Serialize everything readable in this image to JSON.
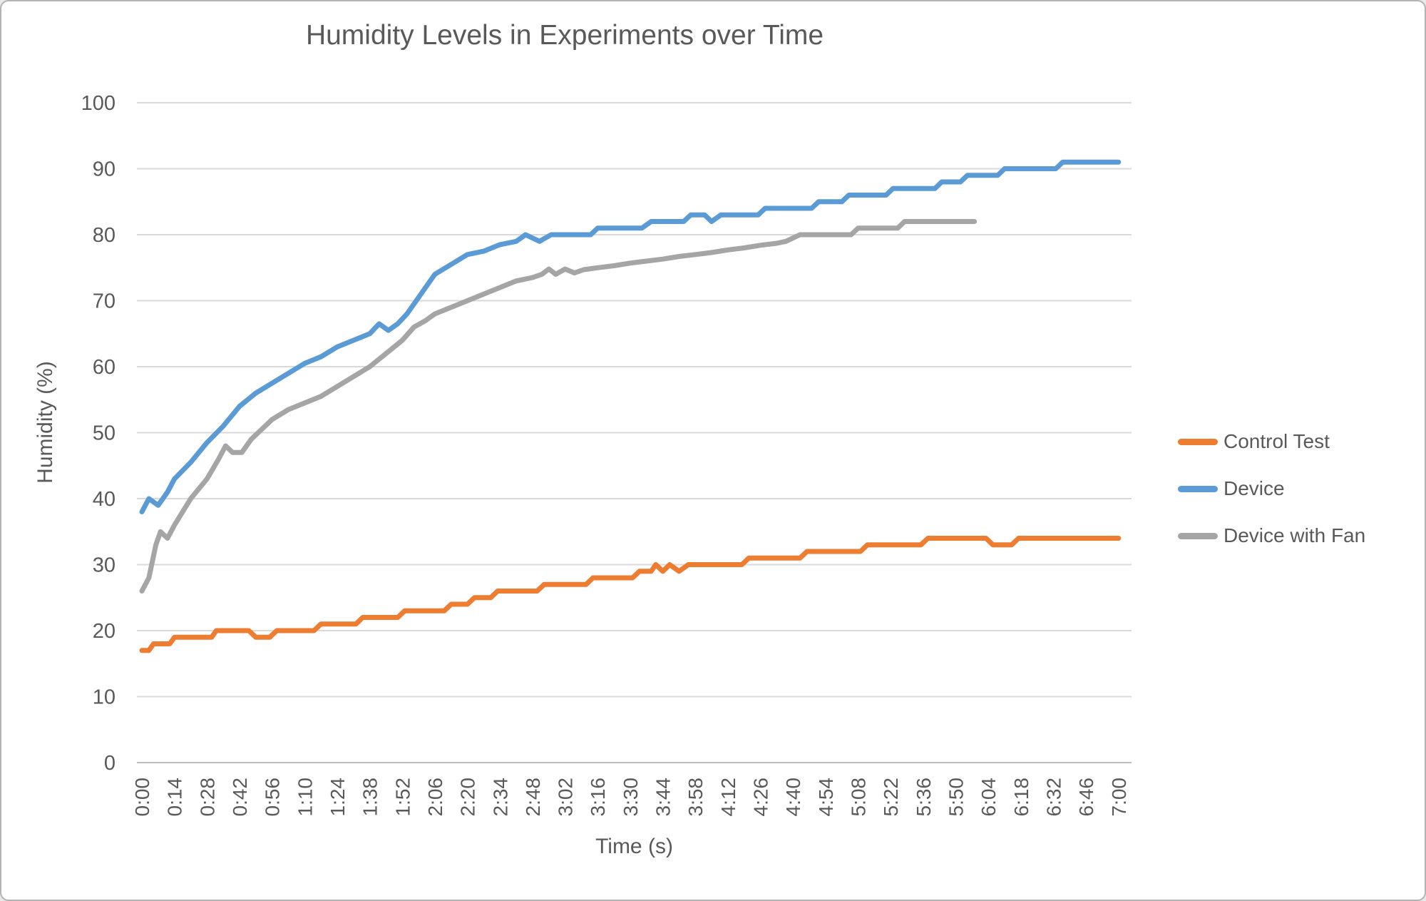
{
  "frame": {
    "background": "#ffffff",
    "border_color": "#b3b3b3"
  },
  "chart_data": {
    "type": "line",
    "title": "Humidity Levels in Experiments over Time",
    "xlabel": "Time (s)",
    "ylabel": "Humidity (%)",
    "x_tick_interval_seconds": 14,
    "x_tick_labels": [
      "0:00",
      "0:14",
      "0:28",
      "0:42",
      "0:56",
      "1:10",
      "1:24",
      "1:38",
      "1:52",
      "2:06",
      "2:20",
      "2:34",
      "2:48",
      "3:02",
      "3:16",
      "3:30",
      "3:44",
      "3:58",
      "4:12",
      "4:26",
      "4:40",
      "4:54",
      "5:08",
      "5:22",
      "5:36",
      "5:50",
      "6:04",
      "6:18",
      "6:32",
      "6:46",
      "7:00"
    ],
    "y_ticks": [
      0,
      10,
      20,
      30,
      40,
      50,
      60,
      70,
      80,
      90,
      100
    ],
    "ylim": [
      0,
      100
    ],
    "xlim_seconds": [
      0,
      420
    ],
    "grid": "horizontal",
    "legend_position": "right",
    "colors": {
      "axis_text": "#595959",
      "title_text": "#595959",
      "gridline": "#d9d9d9",
      "axis_line": "#bfbfbf"
    },
    "series": [
      {
        "name": "Control Test",
        "color": "#ED7D31",
        "points": [
          [
            0,
            17
          ],
          [
            3,
            17
          ],
          [
            5,
            18
          ],
          [
            12,
            18
          ],
          [
            14,
            19
          ],
          [
            30,
            19
          ],
          [
            32,
            20
          ],
          [
            46,
            20
          ],
          [
            49,
            19
          ],
          [
            55,
            19
          ],
          [
            58,
            20
          ],
          [
            74,
            20
          ],
          [
            77,
            21
          ],
          [
            92,
            21
          ],
          [
            95,
            22
          ],
          [
            110,
            22
          ],
          [
            113,
            23
          ],
          [
            130,
            23
          ],
          [
            133,
            24
          ],
          [
            140,
            24
          ],
          [
            143,
            25
          ],
          [
            150,
            25
          ],
          [
            153,
            26
          ],
          [
            170,
            26
          ],
          [
            173,
            27
          ],
          [
            191,
            27
          ],
          [
            194,
            28
          ],
          [
            211,
            28
          ],
          [
            214,
            29
          ],
          [
            219,
            29
          ],
          [
            221,
            30
          ],
          [
            224,
            29
          ],
          [
            227,
            30
          ],
          [
            231,
            29
          ],
          [
            235,
            30
          ],
          [
            258,
            30
          ],
          [
            261,
            31
          ],
          [
            283,
            31
          ],
          [
            286,
            32
          ],
          [
            309,
            32
          ],
          [
            312,
            33
          ],
          [
            335,
            33
          ],
          [
            338,
            34
          ],
          [
            363,
            34
          ],
          [
            366,
            33
          ],
          [
            374,
            33
          ],
          [
            377,
            34
          ],
          [
            420,
            34
          ]
        ]
      },
      {
        "name": "Device",
        "color": "#5B9BD5",
        "points": [
          [
            0,
            38
          ],
          [
            3,
            40
          ],
          [
            7,
            39
          ],
          [
            11,
            41
          ],
          [
            14,
            43
          ],
          [
            21,
            45.5
          ],
          [
            28,
            48.5
          ],
          [
            35,
            51
          ],
          [
            42,
            54
          ],
          [
            49,
            56
          ],
          [
            56,
            57.5
          ],
          [
            63,
            59
          ],
          [
            70,
            60.5
          ],
          [
            77,
            61.5
          ],
          [
            84,
            63
          ],
          [
            91,
            64
          ],
          [
            98,
            65
          ],
          [
            102,
            66.5
          ],
          [
            106,
            65.5
          ],
          [
            110,
            66.5
          ],
          [
            114,
            68
          ],
          [
            119,
            70.5
          ],
          [
            126,
            74
          ],
          [
            133,
            75.5
          ],
          [
            140,
            77
          ],
          [
            147,
            77.5
          ],
          [
            154,
            78.5
          ],
          [
            161,
            79
          ],
          [
            165,
            80
          ],
          [
            171,
            79
          ],
          [
            176,
            80
          ],
          [
            193,
            80
          ],
          [
            196,
            81
          ],
          [
            215,
            81
          ],
          [
            219,
            82
          ],
          [
            233,
            82
          ],
          [
            236,
            83
          ],
          [
            242,
            83
          ],
          [
            245,
            82
          ],
          [
            249,
            83
          ],
          [
            265,
            83
          ],
          [
            268,
            84
          ],
          [
            288,
            84
          ],
          [
            291,
            85
          ],
          [
            301,
            85
          ],
          [
            304,
            86
          ],
          [
            320,
            86
          ],
          [
            323,
            87
          ],
          [
            341,
            87
          ],
          [
            344,
            88
          ],
          [
            352,
            88
          ],
          [
            355,
            89
          ],
          [
            368,
            89
          ],
          [
            371,
            90
          ],
          [
            393,
            90
          ],
          [
            396,
            91
          ],
          [
            420,
            91
          ]
        ]
      },
      {
        "name": "Device with Fan",
        "color": "#A5A5A5",
        "points": [
          [
            0,
            26
          ],
          [
            3,
            28
          ],
          [
            6,
            33
          ],
          [
            8,
            35
          ],
          [
            11,
            34
          ],
          [
            14,
            36
          ],
          [
            21,
            40
          ],
          [
            28,
            43
          ],
          [
            33,
            46
          ],
          [
            36,
            48
          ],
          [
            39,
            47
          ],
          [
            43,
            47
          ],
          [
            47,
            49
          ],
          [
            50,
            50
          ],
          [
            56,
            52
          ],
          [
            63,
            53.5
          ],
          [
            70,
            54.5
          ],
          [
            77,
            55.5
          ],
          [
            84,
            57
          ],
          [
            91,
            58.5
          ],
          [
            98,
            60
          ],
          [
            105,
            62
          ],
          [
            112,
            64
          ],
          [
            117,
            66
          ],
          [
            122,
            67
          ],
          [
            126,
            68
          ],
          [
            133,
            69
          ],
          [
            140,
            70
          ],
          [
            147,
            71
          ],
          [
            154,
            72
          ],
          [
            161,
            73
          ],
          [
            168,
            73.5
          ],
          [
            172,
            74
          ],
          [
            175,
            74.8
          ],
          [
            178,
            74
          ],
          [
            182,
            74.8
          ],
          [
            186,
            74.2
          ],
          [
            190,
            74.7
          ],
          [
            196,
            75
          ],
          [
            203,
            75.3
          ],
          [
            210,
            75.7
          ],
          [
            217,
            76
          ],
          [
            224,
            76.3
          ],
          [
            231,
            76.7
          ],
          [
            238,
            77
          ],
          [
            245,
            77.3
          ],
          [
            252,
            77.7
          ],
          [
            259,
            78
          ],
          [
            266,
            78.4
          ],
          [
            273,
            78.7
          ],
          [
            277,
            79
          ],
          [
            280,
            79.5
          ],
          [
            283,
            80
          ],
          [
            305,
            80
          ],
          [
            308,
            81
          ],
          [
            325,
            81
          ],
          [
            328,
            82
          ],
          [
            358,
            82
          ]
        ]
      }
    ]
  }
}
